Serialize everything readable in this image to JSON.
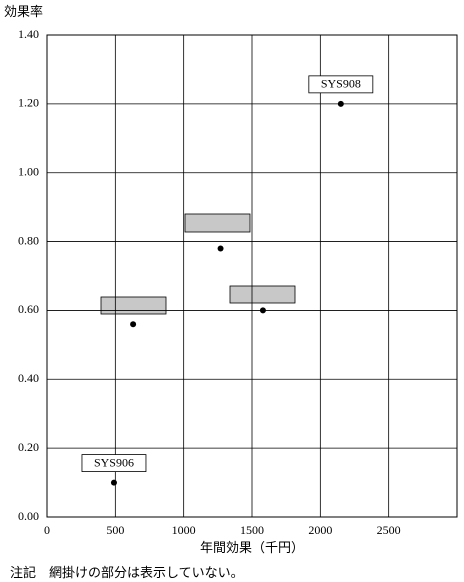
{
  "chart_data": {
    "type": "scatter",
    "ylabel": "効果率",
    "xlabel": "年間効果（千円）",
    "note": "注記　網掛けの部分は表示していない。",
    "x": [
      490,
      630,
      1270,
      1580,
      2150
    ],
    "values": [
      0.1,
      0.56,
      0.78,
      0.6,
      1.2
    ],
    "labels": [
      "SYS906",
      null,
      null,
      null,
      "SYS908"
    ],
    "color": "#000000",
    "xlim": [
      0,
      3000
    ],
    "ylim": [
      0,
      1.4
    ],
    "xticks": [
      0,
      500,
      1000,
      1500,
      2000,
      2500
    ],
    "yticks": [
      {
        "value": 0,
        "label": "0.00"
      },
      {
        "value": 0.2,
        "label": "0.20"
      },
      {
        "value": 0.4,
        "label": "0.40"
      },
      {
        "value": 0.6,
        "label": "0.60"
      },
      {
        "value": 0.8,
        "label": "0.80"
      },
      {
        "value": 1.0,
        "label": "1.00"
      },
      {
        "value": 1.2,
        "label": "1.20"
      },
      {
        "value": 1.4,
        "label": "1.40"
      }
    ],
    "grid": true
  }
}
